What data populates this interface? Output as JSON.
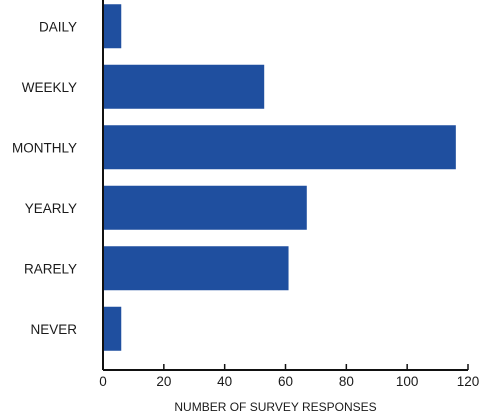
{
  "chart_data": {
    "type": "bar",
    "orientation": "horizontal",
    "categories": [
      "DAILY",
      "WEEKLY",
      "MONTHLY",
      "YEARLY",
      "RARELY",
      "NEVER"
    ],
    "values": [
      6,
      53,
      116,
      67,
      61,
      6
    ],
    "xlabel": "NUMBER OF SURVEY RESPONSES",
    "ylabel": "",
    "xlim": [
      0,
      120
    ],
    "xticks": [
      "0",
      "20",
      "40",
      "60",
      "80",
      "100",
      "120"
    ],
    "grid": false,
    "bar_color": "#1f4f9f"
  }
}
